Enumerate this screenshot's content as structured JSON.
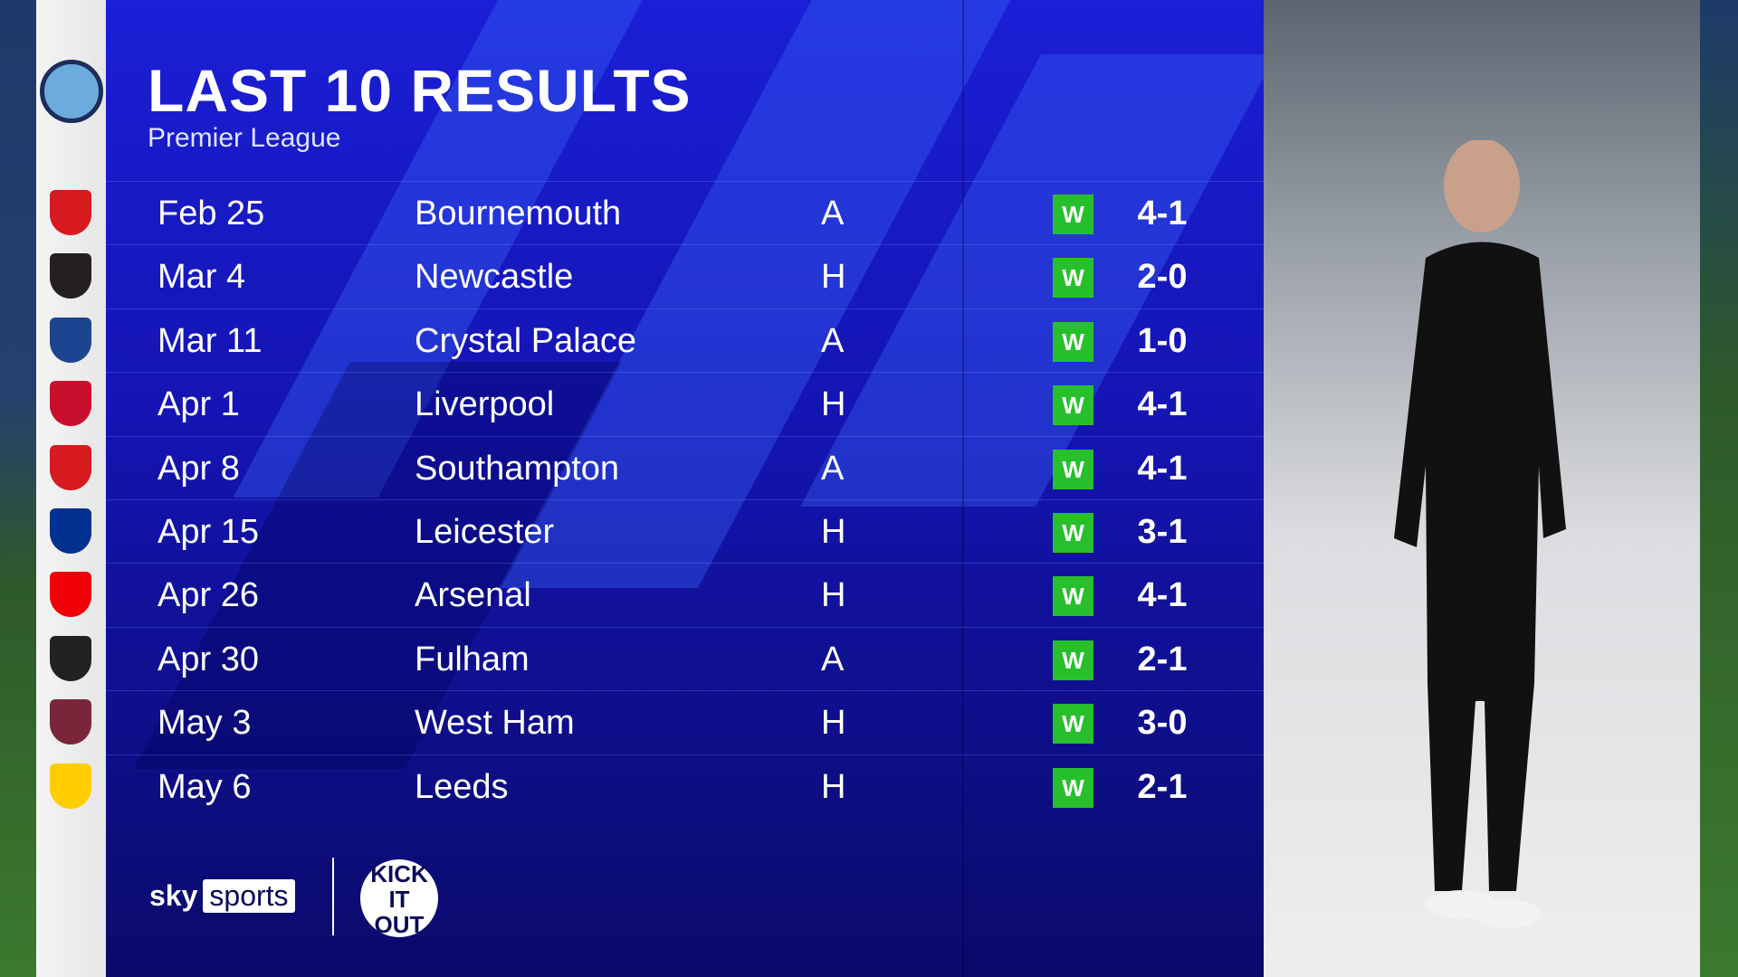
{
  "header": {
    "title": "LAST 10 RESULTS",
    "subtitle": "Premier League"
  },
  "team_crest": "Manchester City",
  "results": [
    {
      "date": "Feb 25",
      "opponent": "Bournemouth",
      "venue": "A",
      "result": "W",
      "score": "4-1",
      "crest_color": "#d71920"
    },
    {
      "date": "Mar 4",
      "opponent": "Newcastle",
      "venue": "H",
      "result": "W",
      "score": "2-0",
      "crest_color": "#241f20"
    },
    {
      "date": "Mar 11",
      "opponent": "Crystal Palace",
      "venue": "A",
      "result": "W",
      "score": "1-0",
      "crest_color": "#1b458f"
    },
    {
      "date": "Apr 1",
      "opponent": "Liverpool",
      "venue": "H",
      "result": "W",
      "score": "4-1",
      "crest_color": "#c8102e"
    },
    {
      "date": "Apr 8",
      "opponent": "Southampton",
      "venue": "A",
      "result": "W",
      "score": "4-1",
      "crest_color": "#d71920"
    },
    {
      "date": "Apr 15",
      "opponent": "Leicester",
      "venue": "H",
      "result": "W",
      "score": "3-1",
      "crest_color": "#003090"
    },
    {
      "date": "Apr 26",
      "opponent": "Arsenal",
      "venue": "H",
      "result": "W",
      "score": "4-1",
      "crest_color": "#ef0107"
    },
    {
      "date": "Apr 30",
      "opponent": "Fulham",
      "venue": "A",
      "result": "W",
      "score": "2-1",
      "crest_color": "#222222"
    },
    {
      "date": "May 3",
      "opponent": "West Ham",
      "venue": "H",
      "result": "W",
      "score": "3-0",
      "crest_color": "#7a263a"
    },
    {
      "date": "May 6",
      "opponent": "Leeds",
      "venue": "H",
      "result": "W",
      "score": "2-1",
      "crest_color": "#ffcd00"
    }
  ],
  "colors": {
    "win": "#27c02c",
    "panel": "#1414b0"
  },
  "footer": {
    "sky": "sky",
    "sports": "sports",
    "kick_it_out": "KICK IT OUT"
  }
}
